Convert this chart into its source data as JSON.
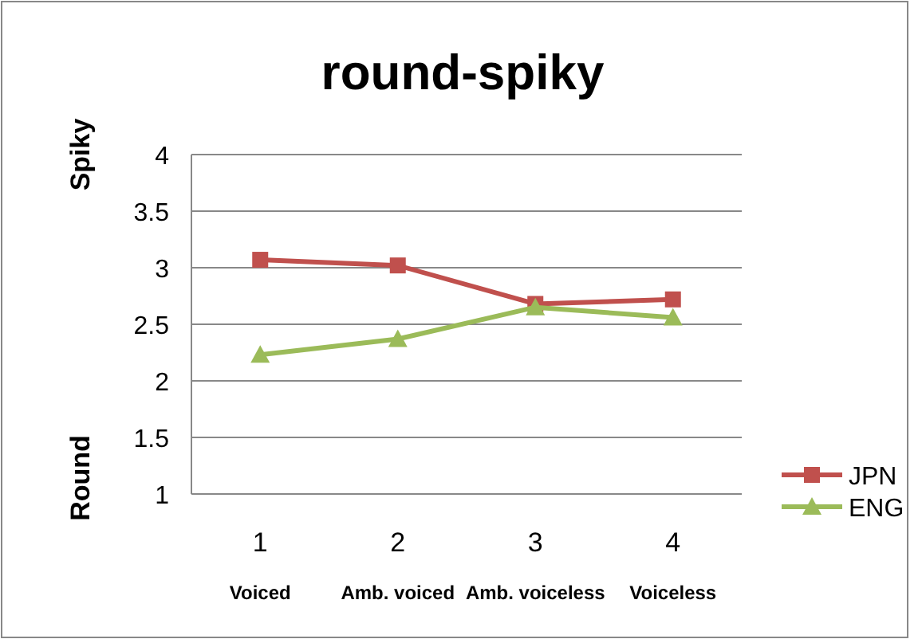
{
  "chart_data": {
    "type": "line",
    "title": "round-spiky",
    "ylabel": "Spiky",
    "categories": [
      "1",
      "2",
      "3",
      "4"
    ],
    "series": [
      {
        "name": "JPN",
        "color": "#c0504d",
        "marker": "square",
        "values": [
          3.07,
          3.02,
          2.68,
          2.72
        ]
      },
      {
        "name": "ENG",
        "color": "#9bbb59",
        "marker": "triangle",
        "values": [
          2.23,
          2.37,
          2.65,
          2.56
        ]
      }
    ],
    "ylim": [
      1,
      4
    ],
    "yticks": [
      1,
      1.5,
      2,
      2.5,
      3,
      3.5,
      4
    ],
    "grid": "y",
    "legend": "right",
    "annotations": [
      "Round",
      "Voiced",
      "Amb. voiced",
      "Amb. voiceless",
      "Voiceless"
    ]
  }
}
